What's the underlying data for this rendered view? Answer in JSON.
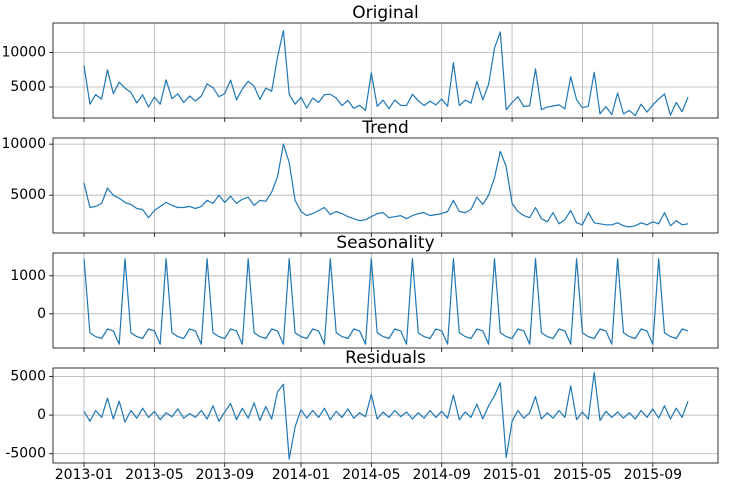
{
  "chart_data": [
    {
      "type": "line",
      "title": "Original",
      "color": "#1f77b4",
      "grid": true,
      "ylim": [
        500,
        14300
      ],
      "yticks": [
        5000,
        10000
      ],
      "values": [
        8150,
        2500,
        3900,
        3250,
        7500,
        4050,
        5700,
        4850,
        4200,
        2700,
        3850,
        2100,
        3550,
        2500,
        6050,
        3300,
        4000,
        2750,
        3700,
        2950,
        3700,
        5450,
        4900,
        3600,
        4050,
        6000,
        3150,
        4700,
        5850,
        5100,
        3200,
        4850,
        4400,
        9350,
        13200,
        3950,
        2500,
        3500,
        1950,
        3400,
        2750,
        3900,
        3950,
        3400,
        2300,
        3050,
        1900,
        2350,
        1600,
        7050,
        2200,
        3100,
        1850,
        3100,
        2350,
        2300,
        3950,
        3000,
        2300,
        2950,
        2400,
        3250,
        2200,
        8550,
        2300,
        3100,
        2650,
        5800,
        3150,
        5400,
        10650,
        13000,
        1700,
        2750,
        3600,
        2150,
        2300,
        7650,
        1700,
        2100,
        2250,
        2400,
        1850,
        6500,
        3150,
        2000,
        2200,
        7150,
        1100,
        2150,
        1000,
        4150,
        1100,
        1600,
        850,
        2500,
        1350,
        2400,
        3250,
        4000,
        900,
        2750,
        1400,
        3550
      ]
    },
    {
      "type": "line",
      "title": "Trend",
      "color": "#1f77b4",
      "grid": true,
      "ylim": [
        1300,
        10600
      ],
      "yticks": [
        5000,
        10000
      ],
      "values": [
        6200,
        3800,
        3900,
        4200,
        5700,
        5000,
        4700,
        4300,
        4100,
        3700,
        3600,
        2800,
        3500,
        3900,
        4300,
        4000,
        3800,
        3800,
        3900,
        3700,
        3900,
        4500,
        4200,
        5000,
        4300,
        4900,
        4200,
        4600,
        4800,
        4000,
        4500,
        4400,
        5300,
        6800,
        10000,
        8200,
        4500,
        3400,
        3000,
        3200,
        3500,
        3800,
        3100,
        3400,
        3200,
        2900,
        2700,
        2500,
        2600,
        2900,
        3200,
        3300,
        2800,
        2900,
        3000,
        2700,
        3000,
        3200,
        3300,
        3000,
        3100,
        3200,
        3400,
        4500,
        3400,
        3300,
        3600,
        4800,
        4100,
        5000,
        6700,
        9300,
        7800,
        4200,
        3400,
        3000,
        2800,
        3800,
        2700,
        2400,
        3300,
        2200,
        2600,
        3500,
        2300,
        2100,
        3300,
        2300,
        2200,
        2100,
        2100,
        2300,
        2000,
        1900,
        2000,
        2300,
        2100,
        2400,
        2200,
        3300,
        2000,
        2500,
        2100,
        2200
      ]
    },
    {
      "type": "line",
      "title": "Seasonality",
      "color": "#1f77b4",
      "grid": true,
      "ylim": [
        -900,
        1600
      ],
      "yticks": [
        0,
        1000
      ],
      "values": [
        1450,
        -500,
        -600,
        -650,
        -400,
        -450,
        -800,
        1450,
        -500,
        -600,
        -650,
        -400,
        -450,
        -800,
        1450,
        -500,
        -600,
        -650,
        -400,
        -450,
        -800,
        1450,
        -500,
        -600,
        -650,
        -400,
        -450,
        -800,
        1450,
        -500,
        -600,
        -650,
        -400,
        -450,
        -800,
        1450,
        -500,
        -600,
        -650,
        -400,
        -450,
        -800,
        1450,
        -500,
        -600,
        -650,
        -400,
        -450,
        -800,
        1450,
        -500,
        -600,
        -650,
        -400,
        -450,
        -800,
        1450,
        -500,
        -600,
        -650,
        -400,
        -450,
        -800,
        1450,
        -500,
        -600,
        -650,
        -400,
        -450,
        -800,
        1450,
        -500,
        -600,
        -650,
        -400,
        -450,
        -800,
        1450,
        -500,
        -600,
        -650,
        -400,
        -450,
        -800,
        1450,
        -500,
        -600,
        -650,
        -400,
        -450,
        -800,
        1450,
        -500,
        -600,
        -650,
        -400,
        -450,
        -800,
        1450,
        -500,
        -600,
        -650,
        -400,
        -450
      ]
    },
    {
      "type": "line",
      "title": "Residuals",
      "color": "#1f77b4",
      "grid": true,
      "ylim": [
        -6200,
        6100
      ],
      "yticks": [
        -5000,
        0,
        5000
      ],
      "values": [
        500,
        -800,
        600,
        -300,
        2200,
        -500,
        1800,
        -900,
        600,
        -400,
        900,
        -300,
        500,
        -600,
        300,
        -200,
        800,
        -400,
        200,
        -300,
        600,
        -500,
        1200,
        -800,
        400,
        1500,
        -600,
        900,
        -400,
        1600,
        -700,
        1100,
        -500,
        3000,
        4000,
        -5700,
        -1500,
        700,
        -400,
        600,
        -300,
        900,
        -600,
        500,
        -300,
        800,
        -400,
        300,
        -200,
        2700,
        -500,
        400,
        -300,
        600,
        -200,
        400,
        -500,
        300,
        -400,
        600,
        -300,
        500,
        -400,
        2600,
        -600,
        400,
        -300,
        1400,
        -500,
        1200,
        2500,
        4200,
        -5500,
        -800,
        600,
        -400,
        300,
        2400,
        -500,
        300,
        -400,
        600,
        -300,
        3800,
        -600,
        400,
        -500,
        5500,
        -700,
        500,
        -300,
        400,
        -400,
        300,
        -500,
        600,
        -300,
        800,
        -400,
        1200,
        -500,
        900,
        -300,
        1800
      ],
      "categories": [
        "2013-01",
        null,
        null,
        null,
        null,
        null,
        null,
        null,
        null,
        null,
        null,
        null,
        "2013-05",
        null,
        null,
        null,
        null,
        null,
        null,
        null,
        null,
        null,
        null,
        null,
        "2013-09",
        null,
        null,
        null,
        null,
        null,
        null,
        null,
        null,
        null,
        null,
        null,
        null,
        "2014-01",
        null,
        null,
        null,
        null,
        null,
        null,
        null,
        null,
        null,
        null,
        null,
        "2014-05",
        null,
        null,
        null,
        null,
        null,
        null,
        null,
        null,
        null,
        null,
        null,
        "2014-09",
        null,
        null,
        null,
        null,
        null,
        null,
        null,
        null,
        null,
        null,
        null,
        "2015-01",
        null,
        null,
        null,
        null,
        null,
        null,
        null,
        null,
        null,
        null,
        null,
        "2015-05",
        null,
        null,
        null,
        null,
        null,
        null,
        null,
        null,
        null,
        null,
        null,
        "2015-09",
        null,
        null,
        null,
        null,
        null,
        null
      ]
    }
  ]
}
